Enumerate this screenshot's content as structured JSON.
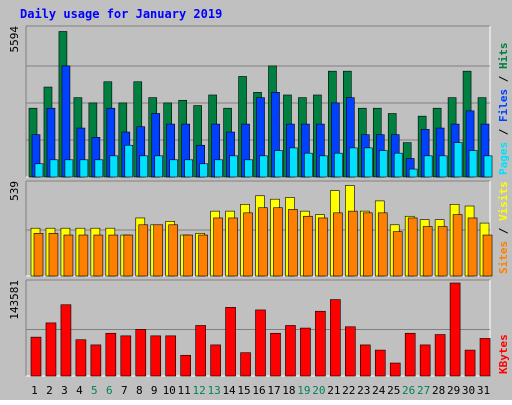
{
  "title": "Daily usage for January 2019",
  "colors": {
    "page_bg": "#c0c0c0",
    "plot_bg": "#c0c0c0",
    "title": "#0000ff",
    "hits": "#008040",
    "files": "#0040ff",
    "pages": "#00e0ff",
    "visits": "#ffff00",
    "sites": "#ff8000",
    "kbytes": "#ff0000",
    "weekday_label": "#000000",
    "weekend_label": "#00805c"
  },
  "chart_data": [
    {
      "type": "bar",
      "panel": "hits-files-pages",
      "categories": [
        "1",
        "2",
        "3",
        "4",
        "5",
        "6",
        "7",
        "8",
        "9",
        "10",
        "11",
        "12",
        "13",
        "14",
        "15",
        "16",
        "17",
        "18",
        "19",
        "20",
        "21",
        "22",
        "23",
        "24",
        "25",
        "26",
        "27",
        "28",
        "29",
        "30",
        "31"
      ],
      "weekend_days": [
        "5",
        "6",
        "12",
        "13",
        "19",
        "20",
        "26",
        "27"
      ],
      "ymax_label": "5594",
      "ylim": [
        0,
        5594
      ],
      "legend": [
        "Pages",
        "Files",
        "Hits"
      ],
      "series": [
        {
          "name": "Hits",
          "values": [
            2600,
            3400,
            5500,
            3000,
            2800,
            3600,
            2800,
            3600,
            3000,
            2800,
            2900,
            2700,
            3100,
            2600,
            3800,
            3200,
            4200,
            3100,
            3000,
            3100,
            4000,
            4000,
            2600,
            2600,
            2400,
            1300,
            2300,
            2600,
            3000,
            4000,
            3000
          ]
        },
        {
          "name": "Files",
          "values": [
            1600,
            2600,
            4200,
            1850,
            1500,
            2600,
            1700,
            1900,
            2400,
            2000,
            2000,
            1200,
            2000,
            1700,
            2000,
            3000,
            3200,
            2000,
            2000,
            2000,
            2800,
            3000,
            1600,
            1600,
            1600,
            700,
            1800,
            1850,
            2000,
            2500,
            2000
          ]
        },
        {
          "name": "Pages",
          "values": [
            500,
            650,
            650,
            650,
            650,
            800,
            1200,
            800,
            800,
            650,
            650,
            500,
            650,
            800,
            650,
            800,
            1000,
            1100,
            900,
            800,
            900,
            1100,
            1100,
            1000,
            900,
            300,
            800,
            800,
            1300,
            1000,
            800
          ]
        }
      ]
    },
    {
      "type": "bar",
      "panel": "visits-sites",
      "categories": [
        "1",
        "2",
        "3",
        "4",
        "5",
        "6",
        "7",
        "8",
        "9",
        "10",
        "11",
        "12",
        "13",
        "14",
        "15",
        "16",
        "17",
        "18",
        "19",
        "20",
        "21",
        "22",
        "23",
        "24",
        "25",
        "26",
        "27",
        "28",
        "29",
        "30",
        "31"
      ],
      "ymax_label": "539",
      "ylim": [
        0,
        539
      ],
      "legend": [
        "Sites",
        "Visits"
      ],
      "series": [
        {
          "name": "Visits",
          "values": [
            280,
            280,
            280,
            280,
            280,
            280,
            240,
            340,
            300,
            320,
            240,
            250,
            380,
            380,
            420,
            470,
            450,
            460,
            380,
            360,
            500,
            530,
            380,
            440,
            300,
            350,
            330,
            330,
            420,
            410,
            310
          ]
        },
        {
          "name": "Sites",
          "values": [
            250,
            250,
            240,
            240,
            240,
            240,
            240,
            300,
            300,
            300,
            240,
            240,
            340,
            340,
            370,
            400,
            400,
            390,
            350,
            340,
            370,
            380,
            370,
            370,
            260,
            340,
            290,
            290,
            360,
            340,
            240
          ]
        }
      ]
    },
    {
      "type": "bar",
      "panel": "kbytes",
      "categories": [
        "1",
        "2",
        "3",
        "4",
        "5",
        "6",
        "7",
        "8",
        "9",
        "10",
        "11",
        "12",
        "13",
        "14",
        "15",
        "16",
        "17",
        "18",
        "19",
        "20",
        "21",
        "22",
        "23",
        "24",
        "25",
        "26",
        "27",
        "28",
        "29",
        "30",
        "31"
      ],
      "ymax_label": "143581",
      "ylim": [
        0,
        143581
      ],
      "legend": [
        "KBytes"
      ],
      "series": [
        {
          "name": "KBytes",
          "values": [
            60000,
            82000,
            110000,
            56000,
            48000,
            66000,
            62000,
            72000,
            62000,
            62000,
            32000,
            78000,
            48000,
            106000,
            36000,
            102000,
            66000,
            78000,
            74000,
            100000,
            118000,
            76000,
            48000,
            40000,
            20000,
            66000,
            48000,
            64000,
            143581,
            40000,
            58000
          ]
        }
      ]
    }
  ]
}
